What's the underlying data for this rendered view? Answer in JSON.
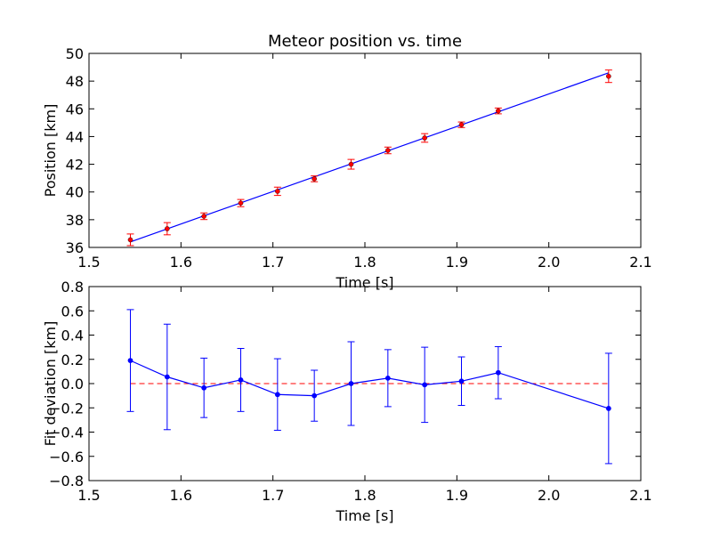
{
  "chart_data": [
    {
      "type": "scatter",
      "title": "Meteor position vs. time",
      "xlabel": "Time [s]",
      "ylabel": "Position [km]",
      "xlim": [
        1.5,
        2.1
      ],
      "ylim": [
        36,
        50
      ],
      "x_ticks": [
        "1.5",
        "1.6",
        "1.7",
        "1.8",
        "1.9",
        "2.0",
        "2.1"
      ],
      "y_ticks": [
        "36",
        "38",
        "40",
        "42",
        "44",
        "46",
        "48",
        "50"
      ],
      "grid": false,
      "colors": {
        "points": "#ff0000",
        "errorbars": "#ff0000",
        "fit": "#0000ff"
      },
      "points": {
        "x": [
          1.545,
          1.585,
          1.625,
          1.665,
          1.705,
          1.745,
          1.785,
          1.825,
          1.865,
          1.905,
          1.945,
          2.065
        ],
        "y": [
          36.55,
          37.35,
          38.25,
          39.2,
          40.05,
          40.95,
          42.0,
          43.0,
          43.9,
          44.85,
          45.85,
          48.35
        ],
        "err": [
          0.42,
          0.44,
          0.24,
          0.26,
          0.3,
          0.21,
          0.35,
          0.24,
          0.31,
          0.2,
          0.21,
          0.45
        ]
      },
      "fit_line": {
        "x": [
          1.545,
          2.065
        ],
        "y": [
          36.4,
          48.6
        ]
      }
    },
    {
      "type": "line",
      "title": "",
      "xlabel": "Time [s]",
      "ylabel": "Fit deviation [km]",
      "xlim": [
        1.5,
        2.1
      ],
      "ylim": [
        -0.8,
        0.8
      ],
      "x_ticks": [
        "1.5",
        "1.6",
        "1.7",
        "1.8",
        "1.9",
        "2.0",
        "2.1"
      ],
      "y_ticks": [
        "−0.8",
        "−0.6",
        "−0.4",
        "−0.2",
        "0.0",
        "0.2",
        "0.4",
        "0.6",
        "0.8"
      ],
      "grid": false,
      "colors": {
        "series": "#0000ff",
        "errorbars": "#0000ff",
        "zero_line": "#ff0000"
      },
      "series": {
        "x": [
          1.545,
          1.585,
          1.625,
          1.665,
          1.705,
          1.745,
          1.785,
          1.825,
          1.865,
          1.905,
          1.945,
          2.065
        ],
        "y": [
          0.19,
          0.055,
          -0.035,
          0.03,
          -0.09,
          -0.1,
          0.0,
          0.045,
          -0.01,
          0.02,
          0.09,
          -0.205
        ],
        "err": [
          0.42,
          0.435,
          0.245,
          0.26,
          0.295,
          0.21,
          0.345,
          0.235,
          0.31,
          0.2,
          0.215,
          0.455
        ]
      },
      "reference_line": {
        "y": 0.0,
        "x": [
          1.545,
          2.065
        ],
        "style": "dashed"
      }
    }
  ]
}
